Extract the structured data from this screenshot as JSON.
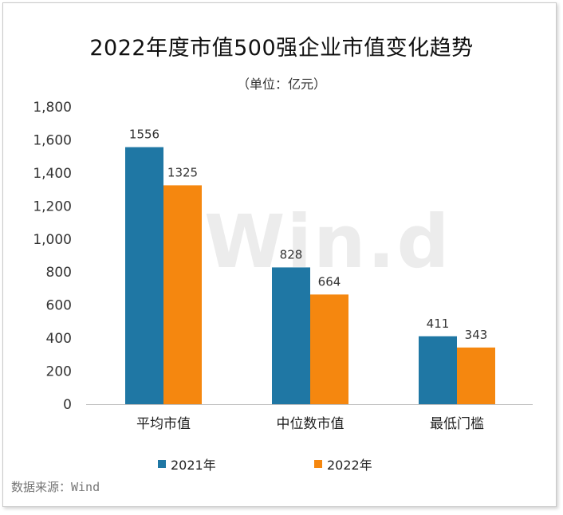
{
  "header": {
    "title": "2022年度市值500强企业市值变化趋势",
    "subtitle": "（单位：亿元）"
  },
  "watermark": "Win.d",
  "source": "数据来源：Wind",
  "colors": {
    "series_2021": "#1f77a4",
    "series_2022": "#f5870f"
  },
  "chart_data": {
    "type": "bar",
    "title": "2022年度市值500强企业市值变化趋势",
    "subtitle": "（单位：亿元）",
    "categories": [
      "平均市值",
      "中位数市值",
      "最低门槛"
    ],
    "series": [
      {
        "name": "2021年",
        "values": [
          1556,
          828,
          411
        ],
        "color": "#1f77a4"
      },
      {
        "name": "2022年",
        "values": [
          1325,
          664,
          343
        ],
        "color": "#f5870f"
      }
    ],
    "ylim": [
      0,
      1800
    ],
    "yticks": [
      "0",
      "200",
      "400",
      "600",
      "800",
      "1,000",
      "1,200",
      "1,400",
      "1,600",
      "1,800"
    ],
    "ytick_values": [
      0,
      200,
      400,
      600,
      800,
      1000,
      1200,
      1400,
      1600,
      1800
    ],
    "grid": false,
    "legend_position": "bottom",
    "data_labels": true
  }
}
